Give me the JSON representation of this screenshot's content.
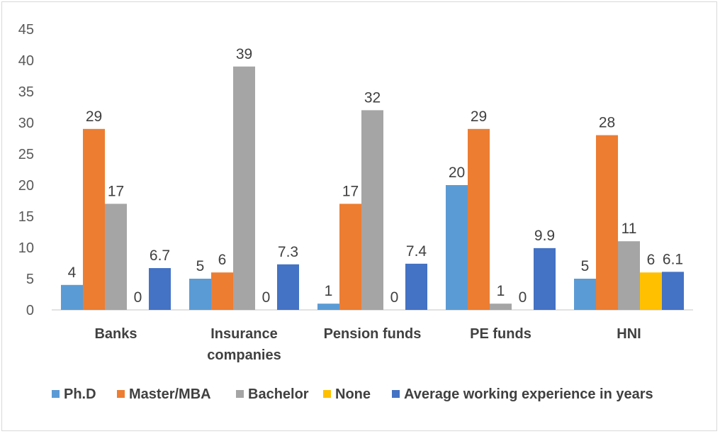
{
  "chart_data": {
    "type": "bar",
    "categories": [
      [
        "Banks"
      ],
      [
        "Insurance",
        "companies"
      ],
      [
        "Pension funds"
      ],
      [
        "PE funds"
      ],
      [
        "HNI"
      ]
    ],
    "series": [
      {
        "name": "Ph.D",
        "color": "#5b9bd5",
        "values": [
          4,
          5,
          1,
          20,
          5
        ],
        "labels": [
          "4",
          "5",
          "1",
          "20",
          "5"
        ]
      },
      {
        "name": "Master/MBA",
        "color": "#ed7d31",
        "values": [
          29,
          6,
          17,
          29,
          28
        ],
        "labels": [
          "29",
          "6",
          "17",
          "29",
          "28"
        ]
      },
      {
        "name": "Bachelor",
        "color": "#a5a5a5",
        "values": [
          17,
          39,
          32,
          1,
          11
        ],
        "labels": [
          "17",
          "39",
          "32",
          "1",
          "11"
        ]
      },
      {
        "name": "None",
        "color": "#ffc000",
        "values": [
          0,
          0,
          0,
          0,
          6
        ],
        "labels": [
          "0",
          "0",
          "0",
          "0",
          "6"
        ]
      },
      {
        "name": "Average working experience in years",
        "color": "#4472c4",
        "values": [
          6.7,
          7.3,
          7.4,
          9.9,
          6.1
        ],
        "labels": [
          "6.7",
          "7.3",
          "7.4",
          "9.9",
          "6.1"
        ]
      }
    ],
    "yticks": [
      "0",
      "5",
      "10",
      "15",
      "20",
      "25",
      "30",
      "35",
      "40",
      "45"
    ],
    "ylim": [
      0,
      45
    ],
    "title": "",
    "xlabel": "",
    "ylabel": "",
    "grid": false,
    "legend_position": "bottom"
  }
}
